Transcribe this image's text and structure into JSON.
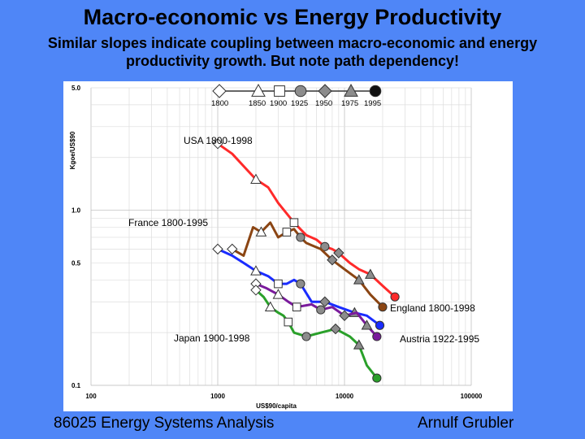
{
  "slide": {
    "title": "Macro-economic vs Energy Productivity",
    "subtitle_line1": "Similar slopes indicate coupling between macro-economic and energy",
    "subtitle_line2": "productivity growth. But note path dependency!",
    "footer_left": "86025 Energy Systems Analysis",
    "footer_right": "Arnulf Grubler"
  },
  "chart_data": {
    "type": "line",
    "title": "",
    "xlabel": "US$90/capita",
    "ylabel": "Kgoe/US$90",
    "xscale": "log",
    "yscale": "log",
    "xlim": [
      100,
      100000
    ],
    "ylim": [
      0.1,
      5.0
    ],
    "x_ticks": [
      "100",
      "1000",
      "10000",
      "100000"
    ],
    "y_ticks": [
      "5.0",
      "1.0",
      "0.5",
      "0.1"
    ],
    "grid": true,
    "legend": {
      "placement": "top",
      "entries": [
        "1800",
        "1850",
        "1900",
        "1925",
        "1950",
        "1975",
        "1995"
      ],
      "markers": [
        "diamond-open",
        "triangle-open",
        "square-open",
        "circle-filled",
        "diamond-filled",
        "triangle-filled",
        "circle-black"
      ]
    },
    "series": [
      {
        "name": "USA 1800-1998",
        "color": "#ff2a2a",
        "x": [
          1000,
          1300,
          1700,
          2000,
          2500,
          3000,
          4000,
          5000,
          6000,
          7000,
          8000,
          9000,
          11000,
          13000,
          16000,
          20000,
          25000
        ],
        "y": [
          2.4,
          2.1,
          1.7,
          1.5,
          1.35,
          1.1,
          0.85,
          0.72,
          0.68,
          0.62,
          0.6,
          0.57,
          0.5,
          0.46,
          0.43,
          0.37,
          0.32
        ]
      },
      {
        "name": "England 1800-1998",
        "color": "#8b4513",
        "x": [
          1300,
          1600,
          1900,
          2200,
          2600,
          3000,
          3500,
          4000,
          4500,
          5000,
          6500,
          8000,
          10000,
          13000,
          16000,
          20000
        ],
        "y": [
          0.6,
          0.55,
          0.8,
          0.75,
          0.85,
          0.7,
          0.75,
          0.78,
          0.7,
          0.65,
          0.6,
          0.52,
          0.46,
          0.4,
          0.33,
          0.28
        ]
      },
      {
        "name": "France 1800-1995",
        "color": "#1a2cff",
        "x": [
          1000,
          1300,
          1600,
          2000,
          2500,
          3000,
          3500,
          4000,
          4500,
          5500,
          7000,
          9000,
          12000,
          15000,
          19000
        ],
        "y": [
          0.6,
          0.55,
          0.5,
          0.45,
          0.42,
          0.38,
          0.38,
          0.4,
          0.38,
          0.3,
          0.3,
          0.28,
          0.26,
          0.25,
          0.22
        ]
      },
      {
        "name": "Austria 1922-1995",
        "color": "#7a1a9c",
        "x": [
          2000,
          2400,
          3000,
          3600,
          4200,
          5500,
          6500,
          8000,
          10000,
          12500,
          15000,
          18000
        ],
        "y": [
          0.38,
          0.36,
          0.33,
          0.3,
          0.28,
          0.29,
          0.27,
          0.28,
          0.25,
          0.26,
          0.22,
          0.19
        ]
      },
      {
        "name": "Japan 1900-1998",
        "color": "#2aa02a",
        "x": [
          2000,
          2300,
          2600,
          3000,
          3300,
          3600,
          4000,
          5000,
          6500,
          8500,
          11000,
          13000,
          15000,
          18000
        ],
        "y": [
          0.35,
          0.32,
          0.28,
          0.26,
          0.25,
          0.23,
          0.2,
          0.19,
          0.2,
          0.21,
          0.19,
          0.17,
          0.13,
          0.11
        ]
      }
    ]
  }
}
